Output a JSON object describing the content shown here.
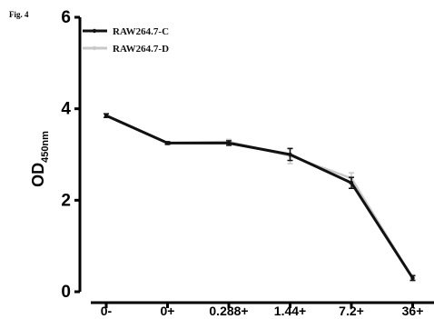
{
  "figure_label": "Fig. 4",
  "chart_data": {
    "type": "line",
    "categories": [
      "0-",
      "0+",
      "0.288+",
      "1.44+",
      "7.2+",
      "36+"
    ],
    "ylabel": "OD",
    "ylabel_subscript": "450nm",
    "ylim": [
      0,
      6
    ],
    "yticks": [
      0,
      2,
      4,
      6
    ],
    "legend_position": "top-left",
    "grid": false,
    "series": [
      {
        "name": "RAW264.7-C",
        "color": "#111111",
        "values": [
          3.85,
          3.25,
          3.25,
          3.0,
          2.38,
          0.3
        ],
        "error": [
          0.04,
          0.03,
          0.05,
          0.13,
          0.12,
          0.05
        ]
      },
      {
        "name": "RAW264.7-D",
        "color": "#c8c8c8",
        "values": [
          3.85,
          3.25,
          3.28,
          2.97,
          2.48,
          0.3
        ],
        "error": [
          0.04,
          0.03,
          0.05,
          0.17,
          0.12,
          0.07
        ]
      }
    ]
  }
}
